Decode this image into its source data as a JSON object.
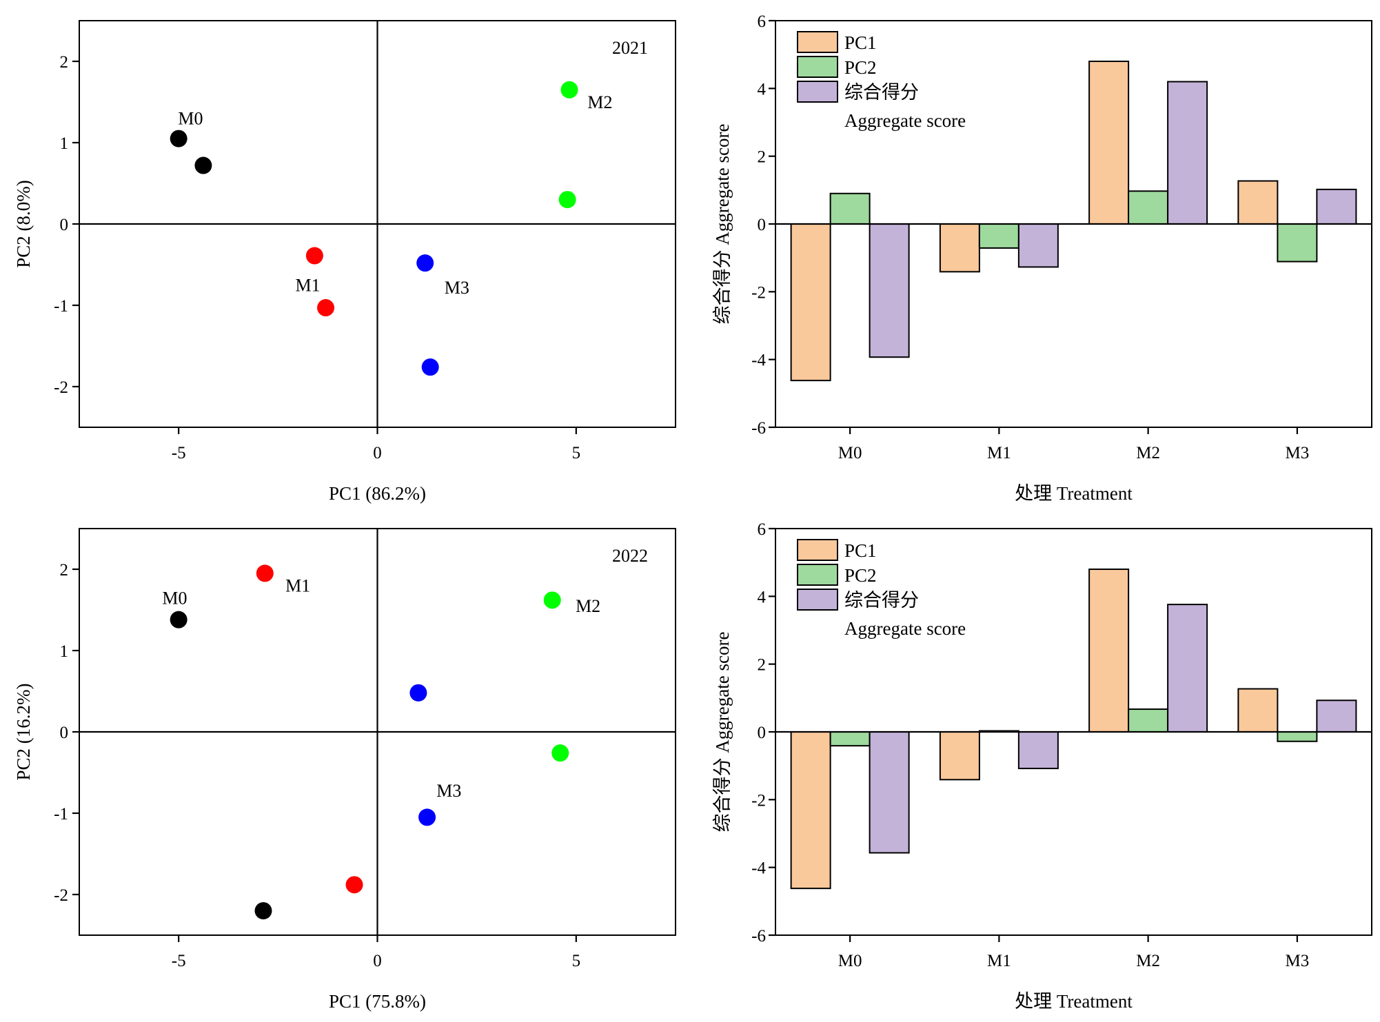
{
  "chart_data": [
    {
      "type": "scatter",
      "year_label": "2021",
      "xlabel": "PC1 (86.2%)",
      "ylabel": "PC2 (8.0%)",
      "xlim": [
        -7.5,
        7.5
      ],
      "ylim": [
        -2.5,
        2.5
      ],
      "xticks": [
        -5,
        0,
        5
      ],
      "yticks": [
        2,
        1,
        0,
        -1,
        -2
      ],
      "tick_labels_x": [
        "-5",
        "0",
        "5"
      ],
      "tick_labels_y": [
        "2",
        "1",
        "0",
        "-1",
        "-2"
      ],
      "series": [
        {
          "name": "M0",
          "color": "#000000",
          "points": [
            [
              -5.0,
              1.05
            ],
            [
              -4.38,
              0.72
            ]
          ]
        },
        {
          "name": "M1",
          "color": "#ff0000",
          "points": [
            [
              -1.58,
              -0.39
            ],
            [
              -1.3,
              -1.03
            ]
          ]
        },
        {
          "name": "M2",
          "color": "#00ff00",
          "points": [
            [
              4.83,
              1.65
            ],
            [
              4.78,
              0.3
            ]
          ]
        },
        {
          "name": "M3",
          "color": "#0000ff",
          "points": [
            [
              1.2,
              -0.48
            ],
            [
              1.33,
              -1.76
            ]
          ]
        }
      ],
      "point_labels": [
        {
          "text": "M0",
          "x": -4.7,
          "y": 1.3
        },
        {
          "text": "M1",
          "x": -1.75,
          "y": -0.75
        },
        {
          "text": "M2",
          "x": 5.6,
          "y": 1.5
        },
        {
          "text": "M3",
          "x": 2.0,
          "y": -0.78
        }
      ]
    },
    {
      "type": "bar",
      "categories": [
        "M0",
        "M1",
        "M2",
        "M3"
      ],
      "xlabel": "处理 Treatment",
      "ylabel": "综合得分 Aggregate score",
      "ylim": [
        -6,
        6
      ],
      "yticks": [
        6,
        4,
        2,
        0,
        -2,
        -4,
        -6
      ],
      "tick_labels_y": [
        "6",
        "4",
        "2",
        "0",
        "-2",
        "-4",
        "-6"
      ],
      "series": [
        {
          "name": "PC1",
          "color": "#f9c89b",
          "values": [
            -4.62,
            -1.41,
            4.8,
            1.27
          ]
        },
        {
          "name": "PC2",
          "color": "#9ed99d",
          "values": [
            0.9,
            -0.71,
            0.97,
            -1.11
          ]
        },
        {
          "name": "综合得分",
          "color": "#c3b3d9",
          "values": [
            -3.93,
            -1.27,
            4.2,
            1.02
          ]
        }
      ],
      "legend": {
        "location": "top-left",
        "entries": [
          "PC1",
          "PC2",
          "综合得分"
        ],
        "extra_line": "Aggregate score"
      }
    },
    {
      "type": "scatter",
      "year_label": "2022",
      "xlabel": "PC1 (75.8%)",
      "ylabel": "PC2 (16.2%)",
      "xlim": [
        -7.5,
        7.5
      ],
      "ylim": [
        -2.5,
        2.5
      ],
      "xticks": [
        -5,
        0,
        5
      ],
      "yticks": [
        2,
        1,
        0,
        -1,
        -2
      ],
      "tick_labels_x": [
        "-5",
        "0",
        "5"
      ],
      "tick_labels_y": [
        "2",
        "1",
        "0",
        "-1",
        "-2"
      ],
      "series": [
        {
          "name": "M0",
          "color": "#000000",
          "points": [
            [
              -5.0,
              1.38
            ],
            [
              -2.87,
              -2.2
            ]
          ]
        },
        {
          "name": "M1",
          "color": "#ff0000",
          "points": [
            [
              -2.83,
              1.95
            ],
            [
              -0.58,
              -1.88
            ]
          ]
        },
        {
          "name": "M2",
          "color": "#00ff00",
          "points": [
            [
              4.4,
              1.62
            ],
            [
              4.6,
              -0.26
            ]
          ]
        },
        {
          "name": "M3",
          "color": "#0000ff",
          "points": [
            [
              1.03,
              0.48
            ],
            [
              1.25,
              -1.05
            ]
          ]
        }
      ],
      "point_labels": [
        {
          "text": "M0",
          "x": -5.1,
          "y": 1.65
        },
        {
          "text": "M1",
          "x": -2.0,
          "y": 1.8
        },
        {
          "text": "M2",
          "x": 5.3,
          "y": 1.55
        },
        {
          "text": "M3",
          "x": 1.8,
          "y": -0.72
        }
      ]
    },
    {
      "type": "bar",
      "categories": [
        "M0",
        "M1",
        "M2",
        "M3"
      ],
      "xlabel": "处理 Treatment",
      "ylabel": "综合得分 Aggregate score",
      "ylim": [
        -6,
        6
      ],
      "yticks": [
        6,
        4,
        2,
        0,
        -2,
        -4,
        -6
      ],
      "tick_labels_y": [
        "6",
        "4",
        "2",
        "0",
        "-2",
        "-4",
        "-6"
      ],
      "series": [
        {
          "name": "PC1",
          "color": "#f9c89b",
          "values": [
            -4.62,
            -1.41,
            4.8,
            1.27
          ]
        },
        {
          "name": "PC2",
          "color": "#9ed99d",
          "values": [
            -0.41,
            0.03,
            0.67,
            -0.28
          ]
        },
        {
          "name": "综合得分",
          "color": "#c3b3d9",
          "values": [
            -3.57,
            -1.08,
            3.76,
            0.93
          ]
        }
      ],
      "legend": {
        "location": "top-left",
        "entries": [
          "PC1",
          "PC2",
          "综合得分"
        ],
        "extra_line": "Aggregate score"
      }
    }
  ]
}
